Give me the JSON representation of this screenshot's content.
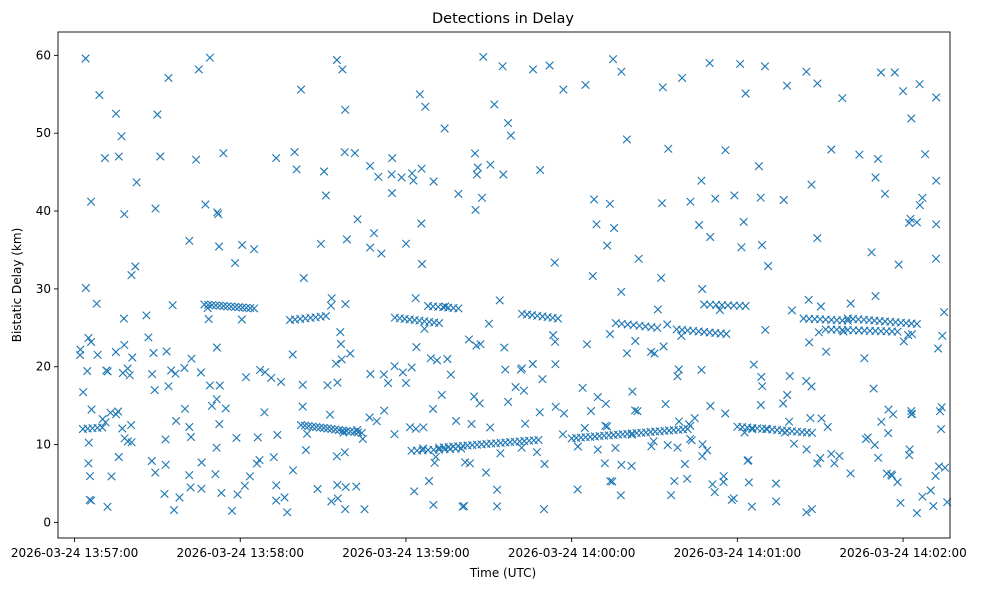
{
  "chart_data": {
    "type": "scatter",
    "title": "Detections in Delay",
    "xlabel": "Time (UTC)",
    "ylabel": "Bistatic Delay (km)",
    "marker": "x",
    "color": "#1f77b4",
    "grid": false,
    "x_type": "datetime",
    "xlim": [
      "2026-03-24 13:56:54",
      "2026-03-24 14:02:17"
    ],
    "ylim": [
      -2,
      63
    ],
    "x_ticks": [
      "2026-03-24 13:57:00",
      "2026-03-24 13:58:00",
      "2026-03-24 13:59:00",
      "2026-03-24 14:00:00",
      "2026-03-24 14:01:00",
      "2026-03-24 14:02:00"
    ],
    "y_ticks": [
      "0",
      "10",
      "20",
      "30",
      "40",
      "50",
      "60"
    ],
    "tracks": [
      {
        "start": "13:57:03",
        "end": "13:57:10",
        "y_start": 12.0,
        "y_end": 12.2,
        "points": 5
      },
      {
        "start": "13:57:47",
        "end": "13:58:05",
        "y_start": 28.0,
        "y_end": 27.5,
        "points": 14
      },
      {
        "start": "13:58:18",
        "end": "13:58:31",
        "y_start": 26.0,
        "y_end": 26.5,
        "points": 8
      },
      {
        "start": "13:58:22",
        "end": "13:58:44",
        "y_start": 12.5,
        "y_end": 11.5,
        "points": 17
      },
      {
        "start": "13:58:56",
        "end": "13:59:12",
        "y_start": 26.3,
        "y_end": 25.6,
        "points": 10
      },
      {
        "start": "13:59:02",
        "end": "13:59:20",
        "y_start": 9.2,
        "y_end": 9.5,
        "points": 10
      },
      {
        "start": "13:59:08",
        "end": "13:59:19",
        "y_start": 27.8,
        "y_end": 27.5,
        "points": 7
      },
      {
        "start": "13:59:12",
        "end": "13:59:48",
        "y_start": 9.6,
        "y_end": 10.6,
        "points": 22
      },
      {
        "start": "13:59:42",
        "end": "13:59:55",
        "y_start": 26.8,
        "y_end": 26.2,
        "points": 8
      },
      {
        "start": "14:00:00",
        "end": "14:00:42",
        "y_start": 10.8,
        "y_end": 12.0,
        "points": 26
      },
      {
        "start": "14:00:16",
        "end": "14:00:31",
        "y_start": 25.6,
        "y_end": 25.0,
        "points": 8
      },
      {
        "start": "14:00:38",
        "end": "14:00:56",
        "y_start": 24.8,
        "y_end": 24.2,
        "points": 10
      },
      {
        "start": "14:00:48",
        "end": "14:01:03",
        "y_start": 28.0,
        "y_end": 27.8,
        "points": 8
      },
      {
        "start": "14:01:00",
        "end": "14:01:27",
        "y_start": 12.3,
        "y_end": 11.5,
        "points": 16
      },
      {
        "start": "14:01:24",
        "end": "14:01:40",
        "y_start": 26.2,
        "y_end": 25.9,
        "points": 9
      },
      {
        "start": "14:01:32",
        "end": "14:01:58",
        "y_start": 24.8,
        "y_end": 24.5,
        "points": 14
      },
      {
        "start": "14:01:40",
        "end": "14:02:05",
        "y_start": 26.2,
        "y_end": 25.5,
        "points": 14
      }
    ],
    "points": [
      [
        "13:57:04",
        59.6
      ],
      [
        "13:57:06",
        41.2
      ],
      [
        "13:57:09",
        54.9
      ],
      [
        "13:57:11",
        46.8
      ],
      [
        "13:57:15",
        52.5
      ],
      [
        "13:57:16",
        47.0
      ],
      [
        "13:57:17",
        49.6
      ],
      [
        "13:57:18",
        39.6
      ],
      [
        "13:57:30",
        52.4
      ],
      [
        "13:57:34",
        57.1
      ],
      [
        "13:57:44",
        46.6
      ],
      [
        "13:57:45",
        58.2
      ],
      [
        "13:57:49",
        59.7
      ],
      [
        "13:57:52",
        39.6
      ],
      [
        "13:58:13",
        46.8
      ],
      [
        "13:58:22",
        55.6
      ],
      [
        "13:58:31",
        42.0
      ],
      [
        "13:58:35",
        59.4
      ],
      [
        "13:58:37",
        58.2
      ],
      [
        "13:58:38",
        53.0
      ],
      [
        "13:58:47",
        45.8
      ],
      [
        "13:58:50",
        44.4
      ],
      [
        "13:58:55",
        46.8
      ],
      [
        "13:59:00",
        35.8
      ],
      [
        "13:59:05",
        55.0
      ],
      [
        "13:59:07",
        53.4
      ],
      [
        "13:59:10",
        43.8
      ],
      [
        "13:59:14",
        50.6
      ],
      [
        "13:59:19",
        42.2
      ],
      [
        "13:59:25",
        47.4
      ],
      [
        "13:59:26",
        45.6
      ],
      [
        "13:59:28",
        59.8
      ],
      [
        "13:59:32",
        53.7
      ],
      [
        "13:59:35",
        58.6
      ],
      [
        "13:59:37",
        51.3
      ],
      [
        "13:59:38",
        49.7
      ],
      [
        "13:59:46",
        58.2
      ],
      [
        "13:59:52",
        58.7
      ],
      [
        "13:59:57",
        55.6
      ],
      [
        "14:00:05",
        56.2
      ],
      [
        "14:00:09",
        38.3
      ],
      [
        "14:00:15",
        59.5
      ],
      [
        "14:00:18",
        57.9
      ],
      [
        "14:00:20",
        49.2
      ],
      [
        "14:00:33",
        55.9
      ],
      [
        "14:00:35",
        48.0
      ],
      [
        "14:00:40",
        57.1
      ],
      [
        "14:00:43",
        41.2
      ],
      [
        "14:00:50",
        59.0
      ],
      [
        "14:00:52",
        41.6
      ],
      [
        "14:01:01",
        58.9
      ],
      [
        "14:01:03",
        55.1
      ],
      [
        "14:01:10",
        58.6
      ],
      [
        "14:01:18",
        56.1
      ],
      [
        "14:01:25",
        57.9
      ],
      [
        "14:01:29",
        56.4
      ],
      [
        "14:01:34",
        47.9
      ],
      [
        "14:01:38",
        54.5
      ],
      [
        "14:01:52",
        57.8
      ],
      [
        "14:01:57",
        57.8
      ],
      [
        "14:02:00",
        55.4
      ],
      [
        "14:02:03",
        51.9
      ],
      [
        "14:02:06",
        56.3
      ],
      [
        "14:02:12",
        54.6
      ],
      [
        "14:02:12",
        43.9
      ],
      [
        "14:02:12",
        38.3
      ],
      [
        "14:02:08",
        47.3
      ],
      [
        "14:02:07",
        41.7
      ],
      [
        "13:57:02",
        21.5
      ],
      [
        "13:57:05",
        7.6
      ],
      [
        "13:57:06",
        2.8
      ],
      [
        "13:57:08",
        28.1
      ],
      [
        "13:57:12",
        19.4
      ],
      [
        "13:57:13",
        14.1
      ],
      [
        "13:57:16",
        8.4
      ],
      [
        "13:57:18",
        22.8
      ],
      [
        "13:57:20",
        18.9
      ],
      [
        "13:57:26",
        26.6
      ],
      [
        "13:57:29",
        17.0
      ],
      [
        "13:57:33",
        7.4
      ],
      [
        "13:57:34",
        17.5
      ],
      [
        "13:57:36",
        1.6
      ],
      [
        "13:57:38",
        3.2
      ],
      [
        "13:57:40",
        14.6
      ],
      [
        "13:57:42",
        4.5
      ],
      [
        "13:57:46",
        7.7
      ],
      [
        "13:57:49",
        17.6
      ],
      [
        "13:57:51",
        6.2
      ],
      [
        "13:57:57",
        1.5
      ],
      [
        "13:57:59",
        3.6
      ],
      [
        "13:58:05",
        35.1
      ],
      [
        "13:58:09",
        19.3
      ],
      [
        "13:58:13",
        2.8
      ],
      [
        "13:58:16",
        3.2
      ],
      [
        "13:58:17",
        1.3
      ],
      [
        "13:58:23",
        31.4
      ],
      [
        "13:58:28",
        4.3
      ],
      [
        "13:58:33",
        2.7
      ],
      [
        "13:58:35",
        8.5
      ],
      [
        "13:58:38",
        1.7
      ],
      [
        "13:58:42",
        4.6
      ],
      [
        "13:58:45",
        1.7
      ],
      [
        "13:58:47",
        35.3
      ],
      [
        "13:58:52",
        19.0
      ],
      [
        "13:59:00",
        17.9
      ],
      [
        "13:59:03",
        4.0
      ],
      [
        "13:59:09",
        21.1
      ],
      [
        "13:59:15",
        21.0
      ],
      [
        "13:59:21",
        2.1
      ],
      [
        "13:59:27",
        22.9
      ],
      [
        "13:59:29",
        6.4
      ],
      [
        "13:59:33",
        4.2
      ],
      [
        "13:59:37",
        15.5
      ],
      [
        "13:59:42",
        19.8
      ],
      [
        "13:59:50",
        1.7
      ],
      [
        "13:59:54",
        23.2
      ],
      [
        "14:00:04",
        17.3
      ],
      [
        "14:00:07",
        14.3
      ],
      [
        "14:00:12",
        7.6
      ],
      [
        "14:00:14",
        5.3
      ],
      [
        "14:00:18",
        7.4
      ],
      [
        "14:00:22",
        16.8
      ],
      [
        "14:00:30",
        21.7
      ],
      [
        "14:00:34",
        15.2
      ],
      [
        "14:00:36",
        3.5
      ],
      [
        "14:00:41",
        7.5
      ],
      [
        "14:00:47",
        19.6
      ],
      [
        "14:00:51",
        4.9
      ],
      [
        "14:00:55",
        5.2
      ],
      [
        "14:00:58",
        2.9
      ],
      [
        "14:01:04",
        8.0
      ],
      [
        "14:01:09",
        17.5
      ],
      [
        "14:01:14",
        5.0
      ],
      [
        "14:01:19",
        18.8
      ],
      [
        "14:01:25",
        1.3
      ],
      [
        "14:01:27",
        1.7
      ],
      [
        "14:01:29",
        7.6
      ],
      [
        "14:01:34",
        8.8
      ],
      [
        "14:01:41",
        6.3
      ],
      [
        "14:01:46",
        21.1
      ],
      [
        "14:01:51",
        8.3
      ],
      [
        "14:01:56",
        6.0
      ],
      [
        "14:01:58",
        5.2
      ],
      [
        "14:02:03",
        14.3
      ],
      [
        "14:02:05",
        1.2
      ],
      [
        "14:02:07",
        3.3
      ],
      [
        "14:02:10",
        4.1
      ],
      [
        "14:02:11",
        2.1
      ],
      [
        "14:02:13",
        7.2
      ],
      [
        "14:02:16",
        2.6
      ],
      [
        "14:02:14",
        14.8
      ]
    ],
    "noise_points": 330,
    "noise_seed": 7
  }
}
